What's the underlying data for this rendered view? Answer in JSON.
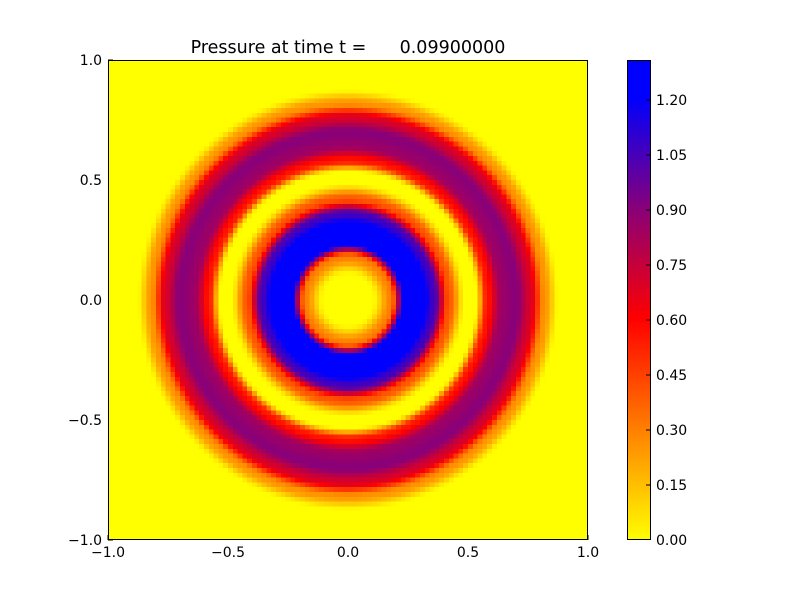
{
  "chart_data": {
    "type": "heatmap",
    "title": "Pressure at time t =      0.09900000",
    "xlabel": "",
    "ylabel": "",
    "xlim": [
      -1.0,
      1.0
    ],
    "ylim": [
      -1.0,
      1.0
    ],
    "x_ticks": [
      "−1.0",
      "−0.5",
      "0.0",
      "0.5",
      "1.0"
    ],
    "y_ticks": [
      "1.0",
      "0.5",
      "0.0",
      "−0.5",
      "−1.0"
    ],
    "grid": false,
    "colormap": {
      "name": "yellow-red-blue",
      "stops": [
        {
          "value": 0.0,
          "color": "#ffff00"
        },
        {
          "value": 0.6,
          "color": "#ff0000"
        },
        {
          "value": 0.9,
          "color": "#88007a"
        },
        {
          "value": 1.2,
          "color": "#0000ff"
        },
        {
          "value": 1.3,
          "color": "#0000ff"
        }
      ]
    },
    "colorbar": {
      "range": [
        0.0,
        1.3
      ],
      "ticks": [
        "1.20",
        "1.05",
        "0.90",
        "0.75",
        "0.60",
        "0.45",
        "0.30",
        "0.15",
        "0.00"
      ]
    },
    "field": {
      "shape": "radially symmetric about (0, 0)",
      "grid_cells": 100,
      "radial_profile": [
        {
          "r": 0.0,
          "p": 0.0
        },
        {
          "r": 0.1,
          "p": 0.0
        },
        {
          "r": 0.18,
          "p": 0.3
        },
        {
          "r": 0.24,
          "p": 1.3
        },
        {
          "r": 0.3,
          "p": 1.3
        },
        {
          "r": 0.36,
          "p": 1.05
        },
        {
          "r": 0.42,
          "p": 0.4
        },
        {
          "r": 0.49,
          "p": 0.0
        },
        {
          "r": 0.53,
          "p": 0.0
        },
        {
          "r": 0.58,
          "p": 0.55
        },
        {
          "r": 0.64,
          "p": 0.85
        },
        {
          "r": 0.7,
          "p": 0.9
        },
        {
          "r": 0.76,
          "p": 0.7
        },
        {
          "r": 0.82,
          "p": 0.25
        },
        {
          "r": 0.88,
          "p": 0.0
        },
        {
          "r": 1.5,
          "p": 0.0
        }
      ]
    }
  }
}
